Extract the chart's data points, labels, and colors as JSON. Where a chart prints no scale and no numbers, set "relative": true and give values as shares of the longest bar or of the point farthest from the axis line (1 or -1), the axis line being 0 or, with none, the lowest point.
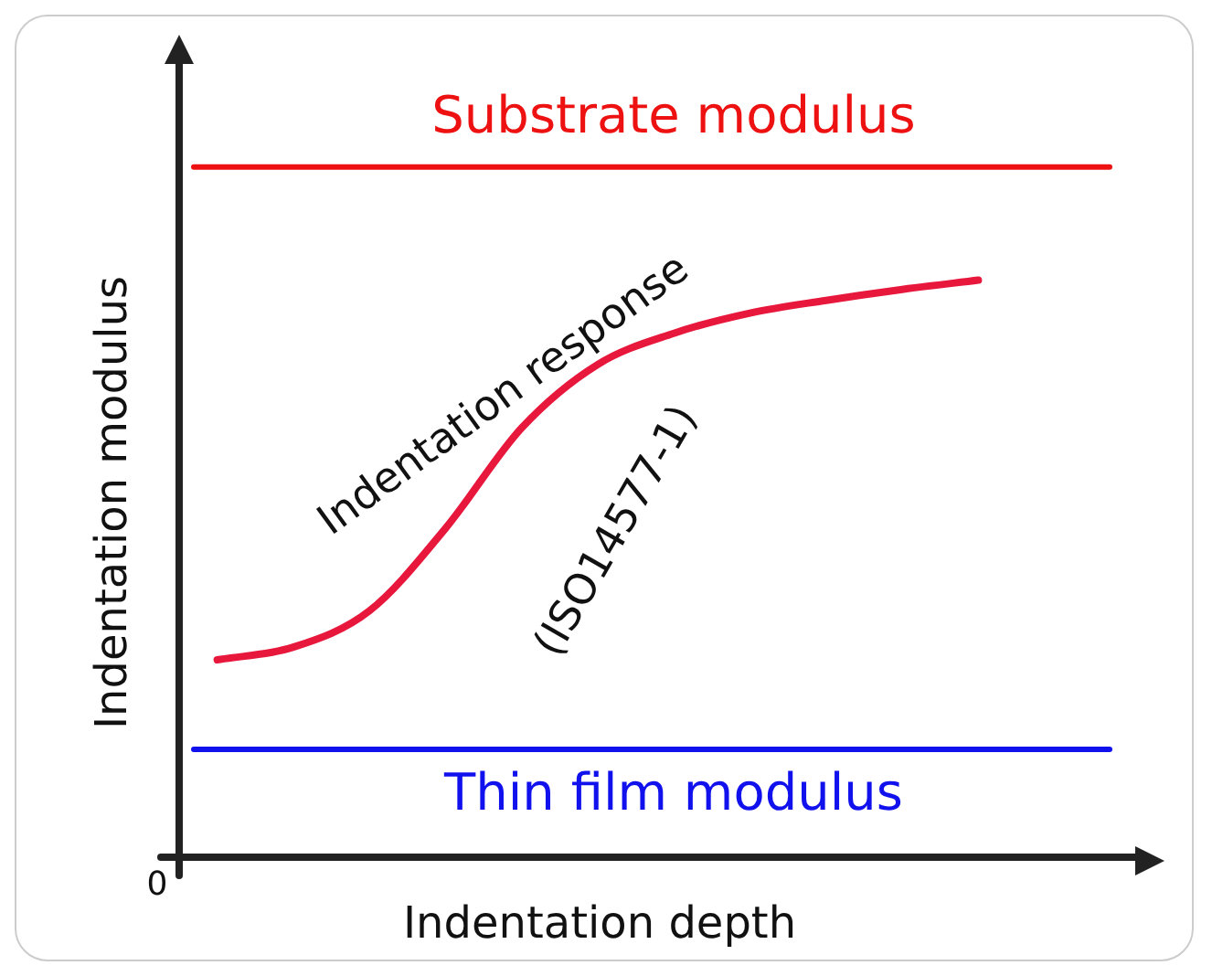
{
  "chart_data": {
    "type": "line",
    "relative": true,
    "xlabel": "Indentation depth",
    "ylabel": "Indentation modulus",
    "categories": [
      null,
      null,
      null,
      null,
      null,
      null,
      null,
      null,
      null,
      null,
      null
    ],
    "series": [
      {
        "color": "#e8173c",
        "values": [
          0.342,
          0.364,
          0.427,
          0.57,
          0.744,
          0.854,
          0.908,
          0.943,
          0.965,
          0.984,
          1.0
        ]
      }
    ],
    "ref_lines": [
      {
        "axis": "y",
        "value": 1.196,
        "label": "Substrate modulus",
        "color": "#ee1111"
      },
      {
        "axis": "y",
        "value": 0.187,
        "label": "Thin film modulus",
        "color": "#1111ee"
      }
    ],
    "annotations": [
      "Indentation response",
      "(ISO14577-1)",
      "0"
    ],
    "legend": false,
    "marker": "none",
    "line_style": "solid"
  }
}
